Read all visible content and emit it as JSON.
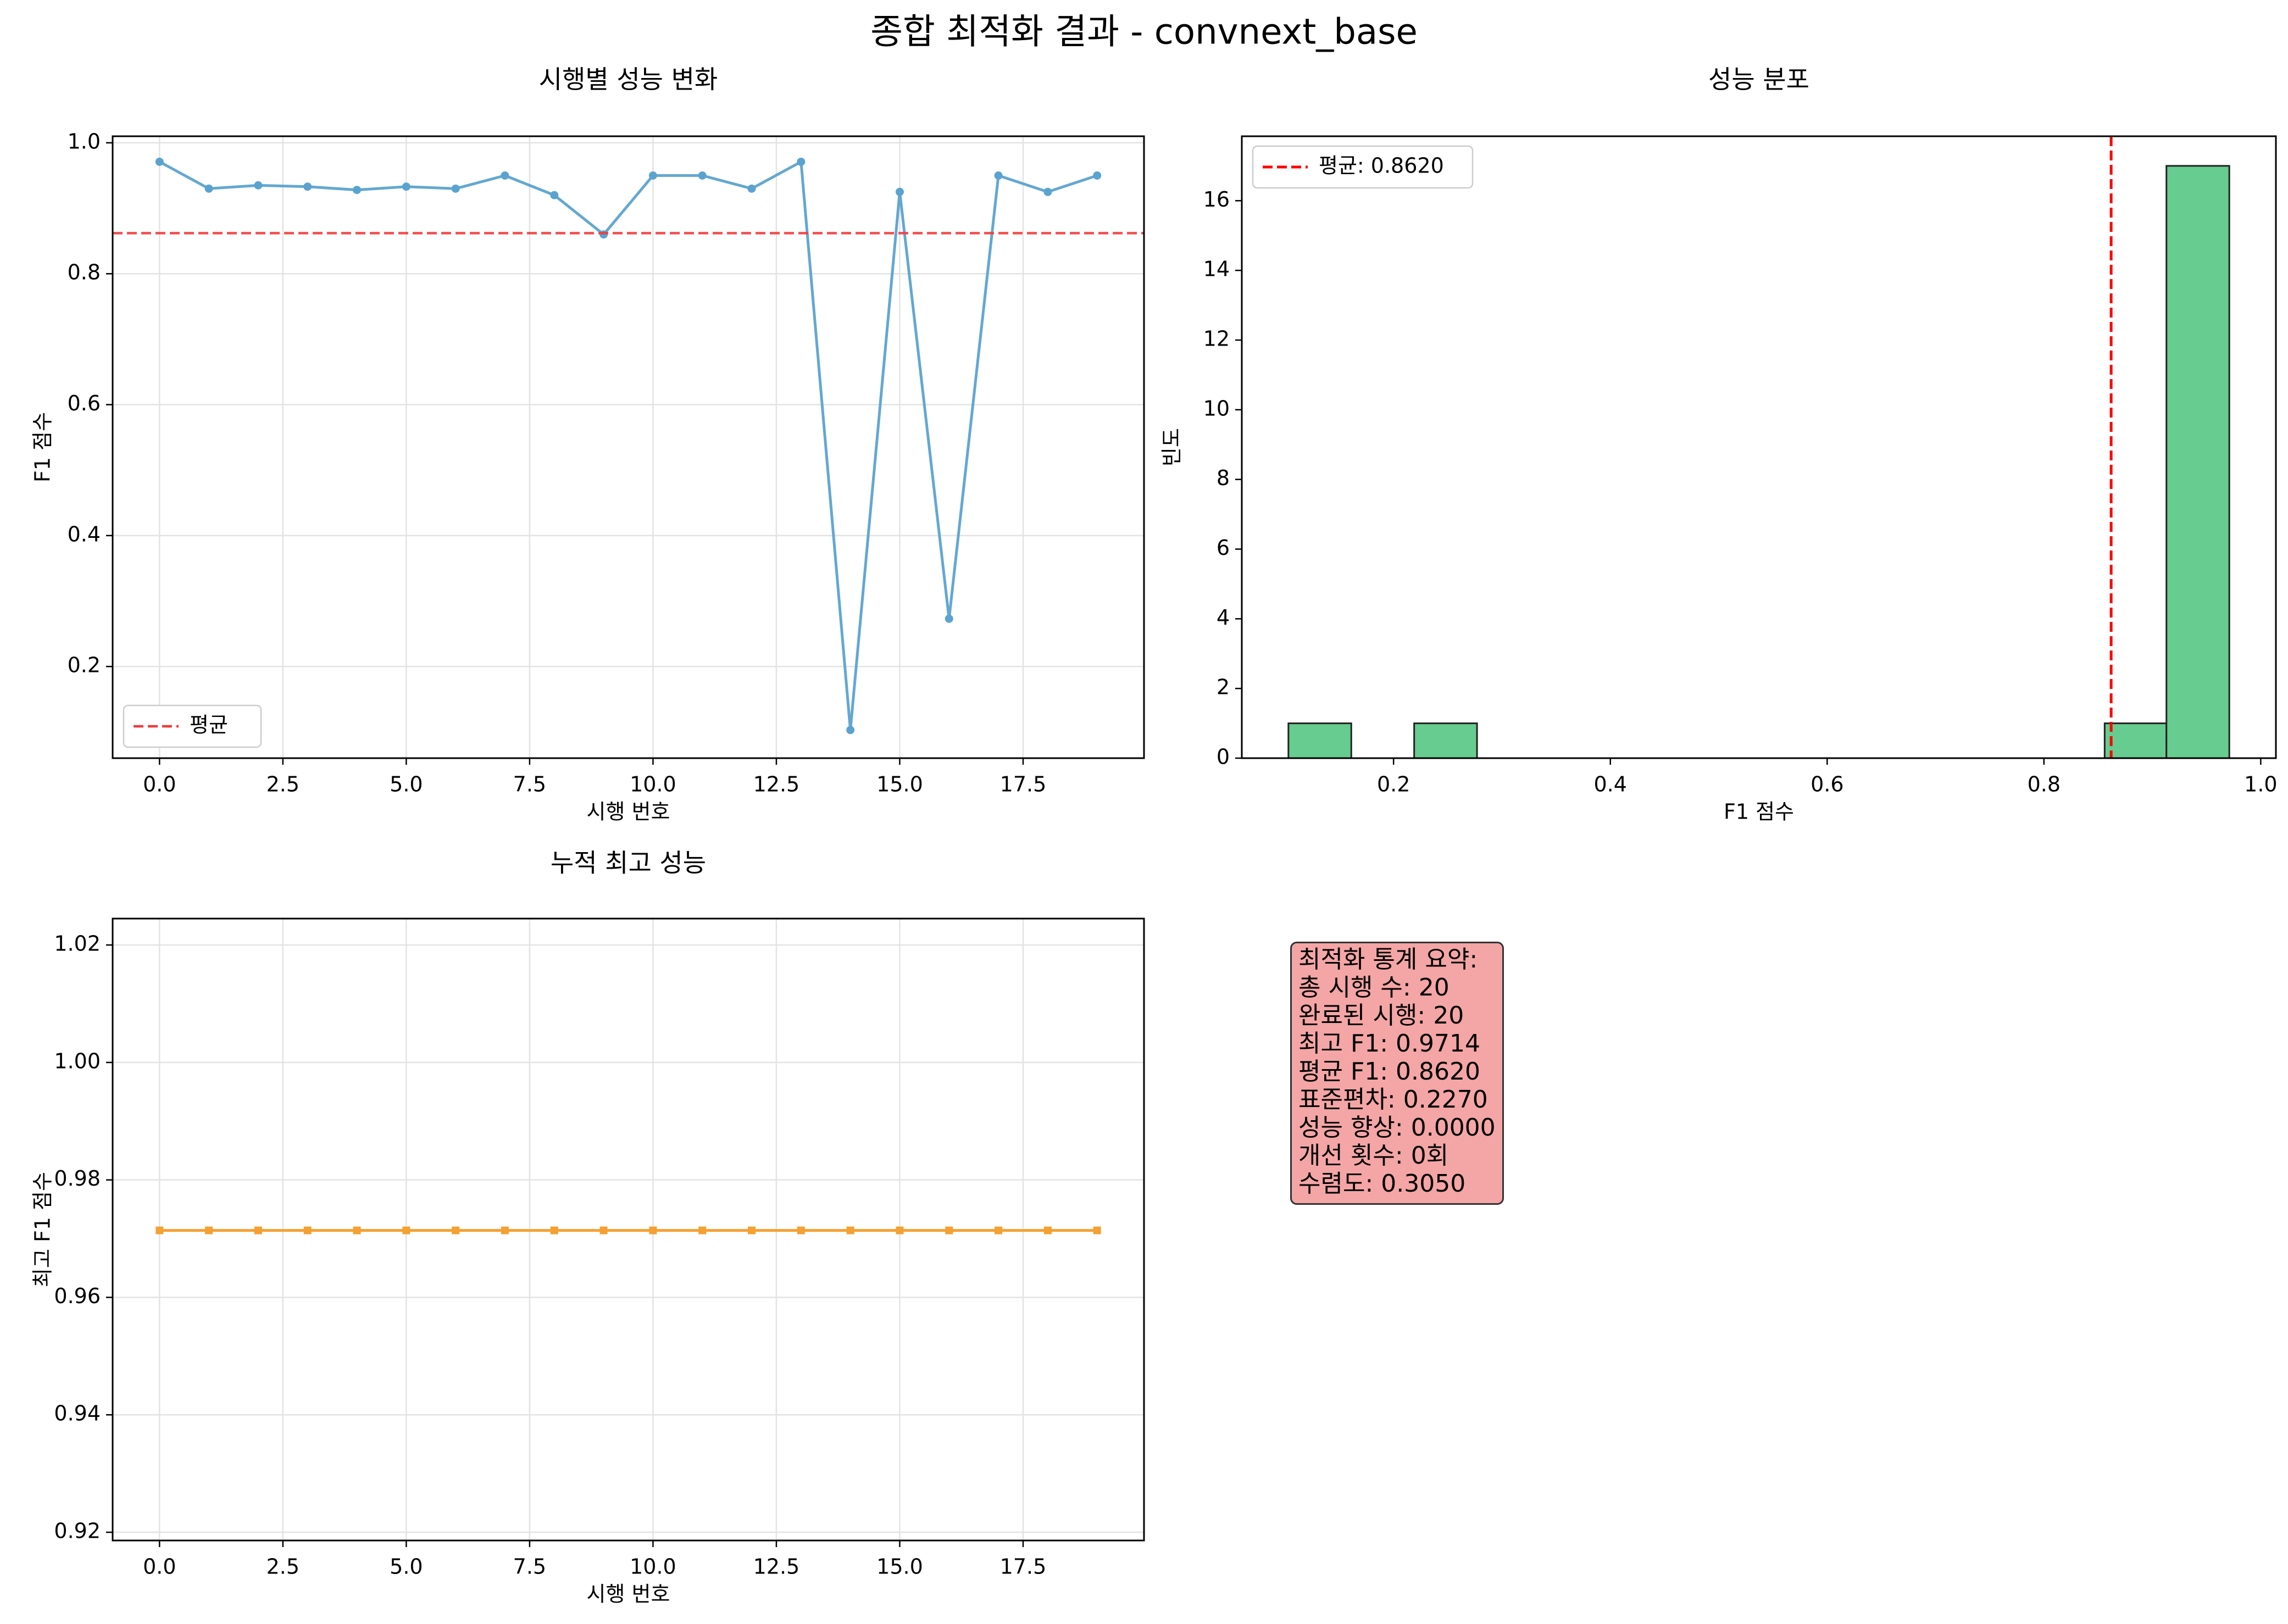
{
  "suptitle": "종합 최적화 결과 - convnext_base",
  "chart_data": [
    {
      "type": "line",
      "title": "시행별 성능 변화",
      "xlabel": "시행 번호",
      "ylabel": "F1 점수",
      "x": [
        0,
        1,
        2,
        3,
        4,
        5,
        6,
        7,
        8,
        9,
        10,
        11,
        12,
        13,
        14,
        15,
        16,
        17,
        18,
        19
      ],
      "series": [
        {
          "name": "",
          "values": [
            0.971,
            0.93,
            0.935,
            0.933,
            0.928,
            0.933,
            0.93,
            0.95,
            0.92,
            0.86,
            0.95,
            0.95,
            0.93,
            0.971,
            0.103,
            0.925,
            0.273,
            0.95,
            0.925,
            0.95
          ],
          "color": "#5ba3cf"
        }
      ],
      "mean_line": {
        "label": "평균",
        "value": 0.862,
        "color": "#f03c3c"
      },
      "xlim": [
        -0.95,
        19.95
      ],
      "ylim": [
        0.06,
        1.01
      ],
      "xticks": [
        "0.0",
        "2.5",
        "5.0",
        "7.5",
        "10.0",
        "12.5",
        "15.0",
        "17.5"
      ],
      "xtick_values": [
        0,
        2.5,
        5,
        7.5,
        10,
        12.5,
        15,
        17.5
      ],
      "yticks": [
        "0.2",
        "0.4",
        "0.6",
        "0.8",
        "1.0"
      ],
      "ytick_values": [
        0.2,
        0.4,
        0.6,
        0.8,
        1.0
      ],
      "legend": "lower-left",
      "grid": true
    },
    {
      "type": "bar",
      "title": "성능 분포",
      "xlabel": "F1 점수",
      "ylabel": "빈도",
      "bins": [
        [
          0.103,
          0.161
        ],
        [
          0.161,
          0.219
        ],
        [
          0.219,
          0.277
        ],
        [
          0.277,
          0.335
        ],
        [
          0.335,
          0.392
        ],
        [
          0.392,
          0.45
        ],
        [
          0.45,
          0.508
        ],
        [
          0.508,
          0.566
        ],
        [
          0.566,
          0.624
        ],
        [
          0.624,
          0.682
        ],
        [
          0.682,
          0.74
        ],
        [
          0.74,
          0.798
        ],
        [
          0.798,
          0.856
        ],
        [
          0.856,
          0.913
        ],
        [
          0.913,
          0.971
        ]
      ],
      "values": [
        1,
        0,
        1,
        0,
        0,
        0,
        0,
        0,
        0,
        0,
        0,
        0,
        0,
        1,
        17
      ],
      "bar_color": "#66cc8f",
      "mean_line": {
        "label": "평균: 0.8620",
        "value": 0.862,
        "color": "#ff0000"
      },
      "xlim": [
        0.06,
        1.014
      ],
      "ylim": [
        0,
        17.85
      ],
      "xticks": [
        "0.2",
        "0.4",
        "0.6",
        "0.8",
        "1.0"
      ],
      "xtick_values": [
        0.2,
        0.4,
        0.6,
        0.8,
        1.0
      ],
      "yticks": [
        "0",
        "2",
        "4",
        "6",
        "8",
        "10",
        "12",
        "14",
        "16"
      ],
      "ytick_values": [
        0,
        2,
        4,
        6,
        8,
        10,
        12,
        14,
        16
      ],
      "legend": "top-left",
      "grid": false
    },
    {
      "type": "line",
      "title": "누적 최고 성능",
      "xlabel": "시행 번호",
      "ylabel": "최고 F1 점수",
      "x": [
        0,
        1,
        2,
        3,
        4,
        5,
        6,
        7,
        8,
        9,
        10,
        11,
        12,
        13,
        14,
        15,
        16,
        17,
        18,
        19
      ],
      "series": [
        {
          "name": "",
          "values": [
            0.9714,
            0.9714,
            0.9714,
            0.9714,
            0.9714,
            0.9714,
            0.9714,
            0.9714,
            0.9714,
            0.9714,
            0.9714,
            0.9714,
            0.9714,
            0.9714,
            0.9714,
            0.9714,
            0.9714,
            0.9714,
            0.9714,
            0.9714
          ],
          "color": "#f5a032"
        }
      ],
      "xlim": [
        -0.95,
        19.95
      ],
      "ylim": [
        0.9186,
        1.0245
      ],
      "xticks": [
        "0.0",
        "2.5",
        "5.0",
        "7.5",
        "10.0",
        "12.5",
        "15.0",
        "17.5"
      ],
      "xtick_values": [
        0,
        2.5,
        5,
        7.5,
        10,
        12.5,
        15,
        17.5
      ],
      "yticks": [
        "0.92",
        "0.94",
        "0.96",
        "0.98",
        "1.00",
        "1.02"
      ],
      "ytick_values": [
        0.92,
        0.94,
        0.96,
        0.98,
        1.0,
        1.02
      ],
      "grid": true
    }
  ],
  "stats_box": {
    "lines": [
      "최적화 통계 요약:",
      "총 시행 수: 20",
      "완료된 시행: 20",
      "최고 F1: 0.9714",
      "평균 F1: 0.8620",
      "표준편차: 0.2270",
      "성능 향상: 0.0000",
      "개선 횟수: 0회",
      "수렴도: 0.3050"
    ],
    "background": "#f4a5a5"
  }
}
